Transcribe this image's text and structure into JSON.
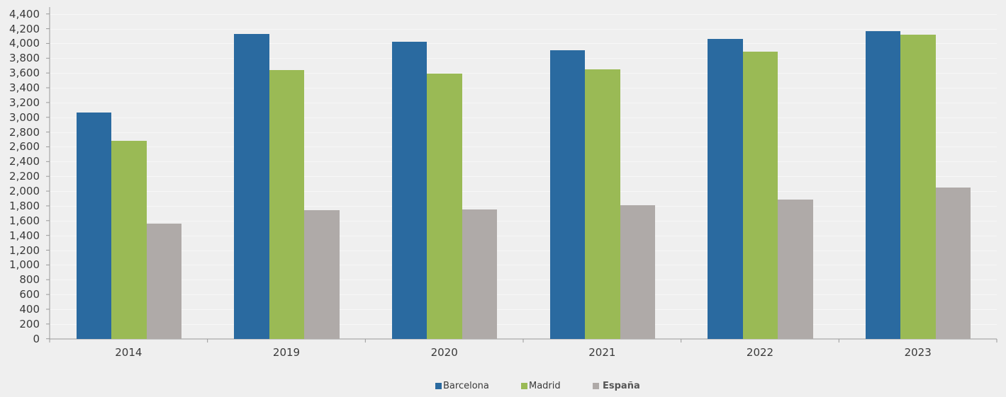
{
  "chart_data": {
    "type": "bar",
    "title": "",
    "xlabel": "",
    "ylabel": "",
    "categories": [
      "2014",
      "2019",
      "2020",
      "2021",
      "2022",
      "2023"
    ],
    "series": [
      {
        "name": "Barcelona",
        "color": "#2a6aa0",
        "values": [
          3060,
          4130,
          4020,
          3905,
          4060,
          4165
        ]
      },
      {
        "name": "Madrid",
        "color": "#9aba55",
        "values": [
          2680,
          3640,
          3595,
          3650,
          3885,
          4115
        ]
      },
      {
        "name": "España",
        "color": "#afaaa8",
        "values": [
          1560,
          1740,
          1755,
          1810,
          1885,
          2045
        ]
      }
    ],
    "ylim": [
      0,
      4400
    ],
    "yticks": [
      0,
      200,
      400,
      600,
      800,
      1000,
      1200,
      1400,
      1600,
      1800,
      2000,
      2200,
      2400,
      2600,
      2800,
      3000,
      3200,
      3400,
      3600,
      3800,
      4000,
      4200,
      4400
    ],
    "ytick_labels": [
      "0",
      "200",
      "400",
      "600",
      "800",
      "1,000",
      "1,200",
      "1,400",
      "1,600",
      "1,800",
      "2,000",
      "2,200",
      "2,400",
      "2,600",
      "2,800",
      "3,000",
      "3,200",
      "3,400",
      "3,600",
      "3,800",
      "4,000",
      "4,200",
      "4,400"
    ],
    "grid": true,
    "legend_position": "bottom"
  },
  "legend": {
    "items": [
      {
        "label": "Barcelona",
        "color": "#2a6aa0"
      },
      {
        "label": "Madrid",
        "color": "#9aba55"
      },
      {
        "label": "España",
        "color": "#afaaa8"
      }
    ]
  }
}
